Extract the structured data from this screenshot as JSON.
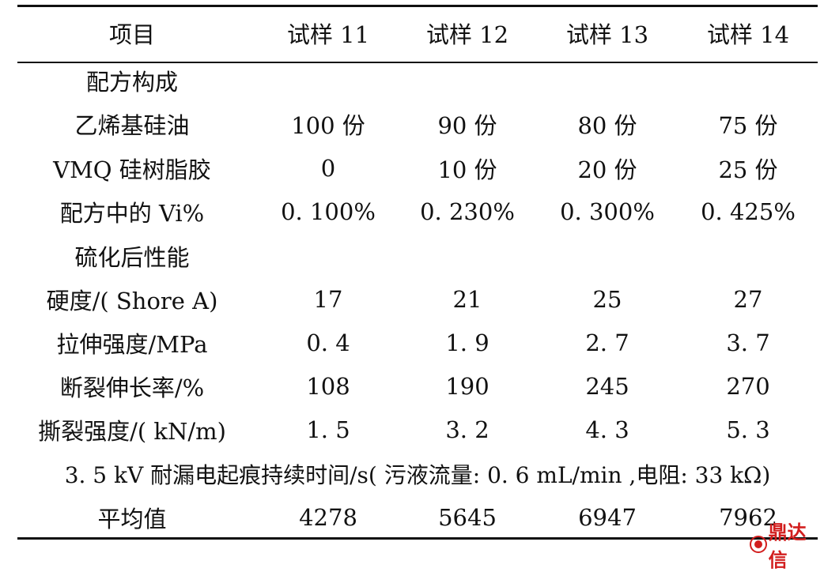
{
  "table": {
    "header": [
      "项目",
      "试样 11",
      "试样 12",
      "试样 13",
      "试样 14"
    ],
    "section_formula": "配方构成",
    "formula_rows": [
      [
        "乙烯基硅油",
        "100 份",
        "90 份",
        "80 份",
        "75 份"
      ],
      [
        "VMQ 硅树脂胶",
        "0",
        "10 份",
        "20 份",
        "25 份"
      ],
      [
        "配方中的 Vi%",
        "0. 100%",
        "0. 230%",
        "0. 300%",
        "0. 425%"
      ]
    ],
    "section_cured": "硫化后性能",
    "cured_rows": [
      [
        "硬度/( Shore A)",
        "17",
        "21",
        "25",
        "27"
      ],
      [
        "拉伸强度/MPa",
        "0. 4",
        "1. 9",
        "2. 7",
        "3. 7"
      ],
      [
        "断裂伸长率/%",
        "108",
        "190",
        "245",
        "270"
      ],
      [
        "撕裂强度/( kN/m)",
        "1. 5",
        "3. 2",
        "4. 3",
        "5. 3"
      ]
    ],
    "tracking_title": "3. 5 kV 耐漏电起痕持续时间/s( 污液流量: 0. 6 mL/min ,电阻: 33 kΩ)",
    "average_row": [
      "平均值",
      "4278",
      "5645",
      "6947",
      "7962"
    ]
  },
  "watermark": {
    "text": "鼎达信",
    "color": "#d21e1e"
  }
}
